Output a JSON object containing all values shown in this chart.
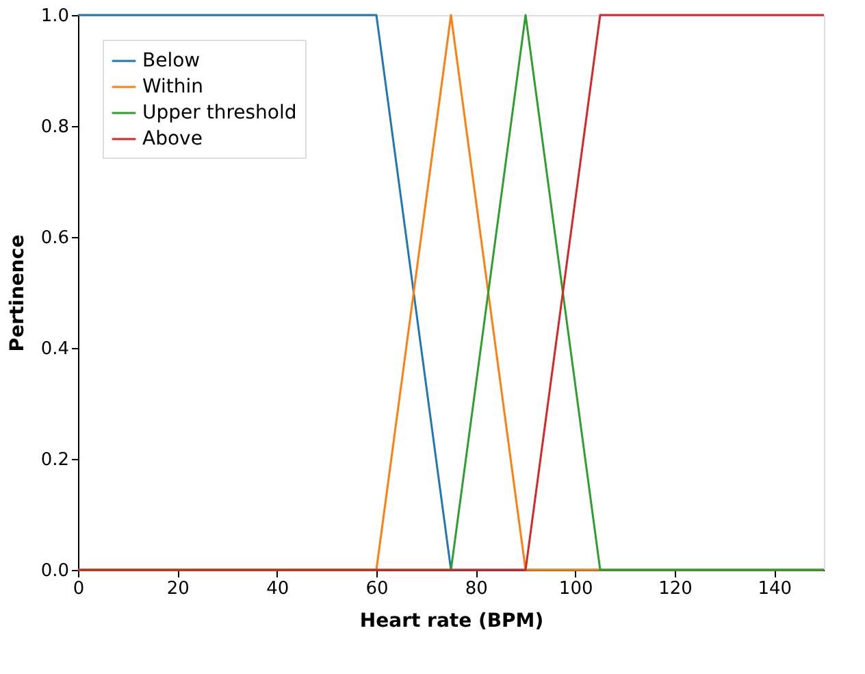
{
  "chart_data": {
    "type": "line",
    "xlabel": "Heart rate (BPM)",
    "ylabel": "Pertinence",
    "xlim": [
      0,
      150
    ],
    "xticks": [
      0,
      20,
      40,
      60,
      80,
      100,
      120,
      140
    ],
    "ylim": [
      0,
      1.0
    ],
    "yticks": [
      {
        "value": 0,
        "label": "0.0"
      },
      {
        "value": 0.2,
        "label": "0.2"
      },
      {
        "value": 0.4,
        "label": "0.4"
      },
      {
        "value": 0.6,
        "label": "0.6"
      },
      {
        "value": 0.8,
        "label": "0.8"
      },
      {
        "value": 1.0,
        "label": "1.0"
      }
    ],
    "grid": false,
    "legend": "top left",
    "marker": "none",
    "line_style": "solid",
    "series": [
      {
        "name": "Below",
        "color": "#1f77b4",
        "x": [
          0,
          60,
          75,
          150
        ],
        "values": [
          1,
          1,
          0,
          0
        ]
      },
      {
        "name": "Within",
        "color": "#ff7f0e",
        "x": [
          0,
          60,
          75,
          90,
          150
        ],
        "values": [
          0,
          0,
          1,
          0,
          0
        ]
      },
      {
        "name": "Upper threshold",
        "color": "#2ca02c",
        "x": [
          0,
          75,
          90,
          105,
          150
        ],
        "values": [
          0,
          0,
          1,
          0,
          0
        ]
      },
      {
        "name": "Above",
        "color": "#d62728",
        "x": [
          0,
          90,
          105,
          150
        ],
        "values": [
          0,
          0,
          1,
          1
        ]
      }
    ]
  }
}
